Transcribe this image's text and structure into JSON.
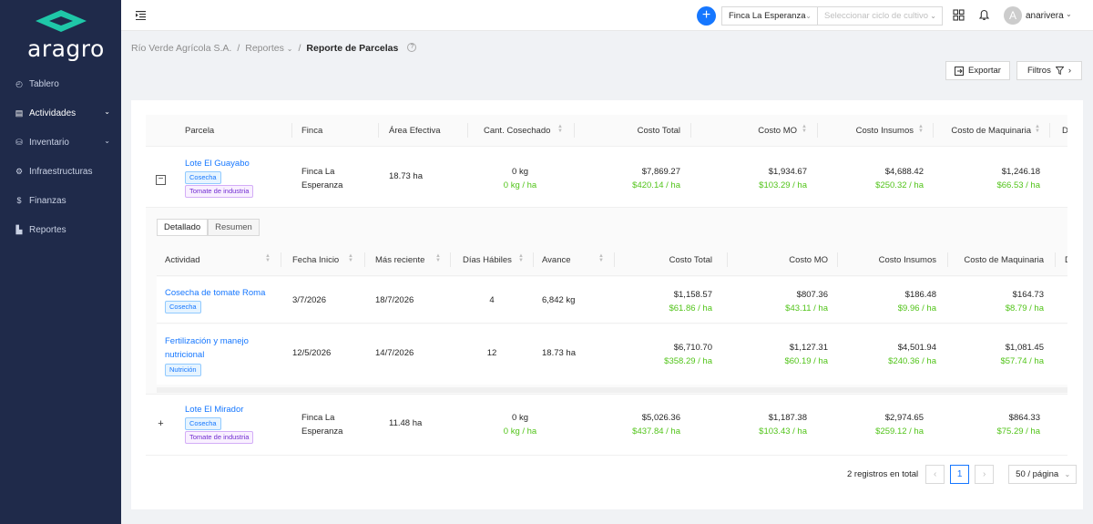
{
  "sidebar": {
    "logo": "aragro",
    "brand_color": "#1fc7a8",
    "items": [
      {
        "label": "Tablero",
        "icon": "dashboard-icon",
        "glyph": "◴"
      },
      {
        "label": "Actividades",
        "icon": "activities-icon",
        "glyph": "▤",
        "chevron": "⌄"
      },
      {
        "label": "Inventario",
        "icon": "inventory-icon",
        "glyph": "⛁",
        "chevron": "⌄"
      },
      {
        "label": "Infraestructuras",
        "icon": "infrastructure-icon",
        "glyph": "⚙"
      },
      {
        "label": "Finanzas",
        "icon": "finance-icon",
        "glyph": "$"
      },
      {
        "label": "Reportes",
        "icon": "reports-icon",
        "glyph": "▙"
      }
    ]
  },
  "topbar": {
    "plus": "+",
    "farm": "Finca La Esperanza",
    "cycle_placeholder": "Seleccionar ciclo de cultivo",
    "avatar": "A",
    "user": "anarivera",
    "chevron": "⌄"
  },
  "breadcrumb": {
    "org": "Río Verde Agrícola S.A.",
    "section": "Reportes",
    "current": "Reporte de Parcelas",
    "sep": "/",
    "help": "?"
  },
  "actions": {
    "export": "Exportar",
    "filters": "Filtros",
    "arrow": "›"
  },
  "table": {
    "headers": [
      "Parcela",
      "Finca",
      "Área Efectiva",
      "Cant. Cosechado",
      "Costo Total",
      "Costo MO",
      "Costo Insumos",
      "Costo de Maquinaria",
      "D"
    ],
    "rows": [
      {
        "name": "Lote El Guayabo",
        "tags": [
          "Cosecha",
          "Tomate de industria"
        ],
        "finca": [
          "Finca La",
          "Esperanza"
        ],
        "area": "18.73 ha",
        "harvest": "0 kg",
        "harvest_rate": "0 kg / ha",
        "total": "$7,869.27",
        "total_rate": "$420.14 / ha",
        "mo": "$1,934.67",
        "mo_rate": "$103.29 / ha",
        "insumos": "$4,688.42",
        "insumos_rate": "$250.32 / ha",
        "maq": "$1,246.18",
        "maq_rate": "$66.53 / ha",
        "toggle": "−"
      },
      {
        "name": "Lote El Mirador",
        "tags": [
          "Cosecha",
          "Tomate de industria"
        ],
        "finca": [
          "Finca La",
          "Esperanza"
        ],
        "area": "11.48 ha",
        "harvest": "0 kg",
        "harvest_rate": "0 kg / ha",
        "total": "$5,026.36",
        "total_rate": "$437.84 / ha",
        "mo": "$1,187.38",
        "mo_rate": "$103.43 / ha",
        "insumos": "$2,974.65",
        "insumos_rate": "$259.12 / ha",
        "maq": "$864.33",
        "maq_rate": "$75.29 / ha",
        "toggle": "+"
      }
    ]
  },
  "subtable": {
    "tabs": [
      "Detallado",
      "Resumen"
    ],
    "headers": [
      "Actividad",
      "Fecha Inicio",
      "Más reciente",
      "Días Hábiles",
      "Avance",
      "Costo Total",
      "Costo MO",
      "Costo Insumos",
      "Costo de Maquinaria",
      "D"
    ],
    "rows": [
      {
        "name": [
          "Cosecha de tomate Roma"
        ],
        "tag": "Cosecha",
        "start": "3/7/2026",
        "recent": "18/7/2026",
        "days": "4",
        "progress": "6,842 kg",
        "total": "$1,158.57",
        "total_rate": "$61.86 / ha",
        "mo": "$807.36",
        "mo_rate": "$43.11 / ha",
        "insumos": "$186.48",
        "insumos_rate": "$9.96 / ha",
        "maq": "$164.73",
        "maq_rate": "$8.79 / ha"
      },
      {
        "name": [
          "Fertilización y manejo",
          "nutricional"
        ],
        "tag": "Nutrición",
        "start": "12/5/2026",
        "recent": "14/7/2026",
        "days": "12",
        "progress": "18.73 ha",
        "total": "$6,710.70",
        "total_rate": "$358.29 / ha",
        "mo": "$1,127.31",
        "mo_rate": "$60.19 / ha",
        "insumos": "$4,501.94",
        "insumos_rate": "$240.36 / ha",
        "maq": "$1,081.45",
        "maq_rate": "$57.74 / ha"
      }
    ]
  },
  "pagination": {
    "total": "2 registros en total",
    "prev": "‹",
    "page": "1",
    "next": "›",
    "size": "50 / página"
  }
}
